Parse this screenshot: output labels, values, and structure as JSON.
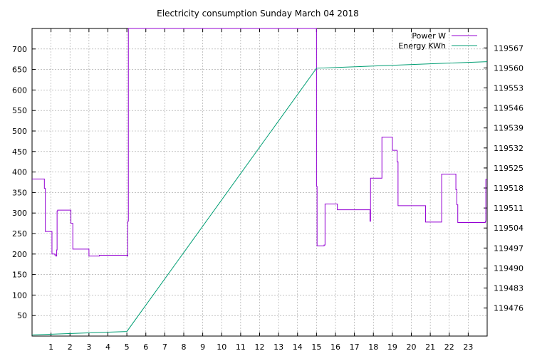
{
  "chart_data": {
    "type": "line",
    "title": "Electricity consumption Sunday March 04 2018",
    "xlabel": "",
    "ylabel": "",
    "y2label": "",
    "xlim": [
      0,
      24
    ],
    "ylim": [
      0,
      750
    ],
    "y2lim": [
      119466.2,
      119573.8
    ],
    "grid": true,
    "legend_position": "top-right",
    "x_ticks": [
      1,
      2,
      3,
      4,
      5,
      6,
      7,
      8,
      9,
      10,
      11,
      12,
      13,
      14,
      15,
      16,
      17,
      18,
      19,
      20,
      21,
      22,
      23
    ],
    "y_ticks": [
      50,
      100,
      150,
      200,
      250,
      300,
      350,
      400,
      450,
      500,
      550,
      600,
      650,
      700
    ],
    "y2_ticks": [
      119476,
      119483,
      119490,
      119497,
      119504,
      119511,
      119518,
      119525,
      119532,
      119539,
      119546,
      119553,
      119560,
      119567
    ],
    "series": [
      {
        "name": "Power W",
        "axis": "y1",
        "color": "#9400d3",
        "step": true,
        "x": [
          0,
          0.65,
          0.7,
          1.0,
          1.05,
          1.2,
          1.25,
          1.3,
          1.32,
          1.35,
          2.0,
          2.05,
          2.1,
          2.15,
          2.2,
          2.95,
          3.0,
          3.5,
          3.55,
          5.0,
          5.02,
          5.05,
          5.08,
          14.98,
          15.0,
          15.03,
          15.06,
          15.4,
          15.45,
          16.05,
          16.1,
          17.8,
          17.82,
          17.85,
          18.4,
          18.45,
          18.95,
          19.0,
          19.2,
          19.25,
          19.3,
          20.7,
          20.75,
          21.55,
          21.6,
          22.3,
          22.35,
          22.4,
          22.45,
          23.85,
          23.9,
          23.93,
          24.0
        ],
        "values": [
          383,
          360,
          255,
          255,
          200,
          198,
          195,
          210,
          305,
          307,
          307,
          275,
          275,
          212,
          212,
          212,
          195,
          195,
          197,
          197,
          195,
          280,
          750,
          750,
          365,
          220,
          220,
          222,
          322,
          322,
          308,
          308,
          280,
          385,
          385,
          485,
          485,
          453,
          453,
          425,
          318,
          318,
          278,
          278,
          395,
          395,
          357,
          320,
          277,
          277,
          280,
          382,
          382
        ]
      },
      {
        "name": "Energy KWh",
        "axis": "y2",
        "color": "#009e73",
        "step": false,
        "x": [
          0,
          5.0,
          15.0,
          24.0
        ],
        "values": [
          119466.6,
          119467.8,
          119559.9,
          119562.2
        ]
      }
    ]
  }
}
